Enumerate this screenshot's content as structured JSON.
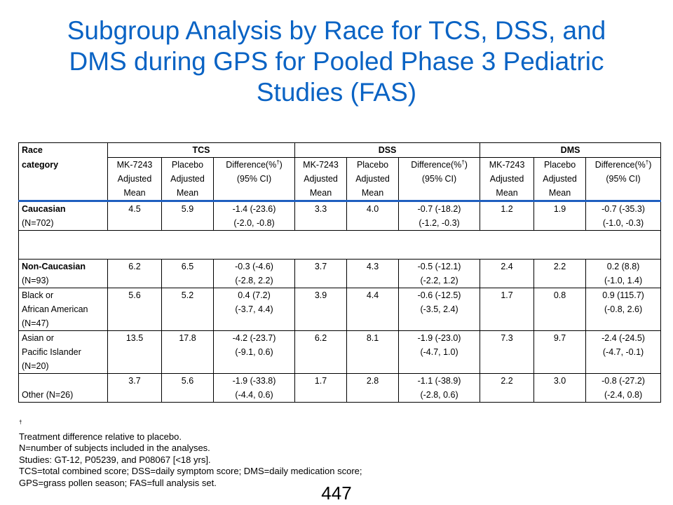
{
  "title": {
    "line1": "Subgroup Analysis by Race for TCS, DSS, and",
    "line2": "DMS during GPS for Pooled Phase 3 Pediatric",
    "line3": "Studies (FAS)"
  },
  "table": {
    "header": {
      "race_line1": "Race",
      "race_line2": "category",
      "groups": [
        "TCS",
        "DSS",
        "DMS"
      ],
      "mk_col": [
        "MK-7243",
        "Adjusted",
        "Mean"
      ],
      "pl_col": [
        "Placebo",
        "Adjusted",
        "Mean"
      ],
      "diff_line1_pre": "Difference(%",
      "diff_sup": "†",
      "diff_line1_post": ")",
      "diff_line2": "(95% CI)"
    },
    "rows": {
      "caucasian": {
        "label": [
          "Caucasian",
          "(N=702)"
        ],
        "tcs": {
          "mk": "4.5",
          "pl": "5.9",
          "d1": "-1.4 (-23.6)",
          "d2": "(-2.0, -0.8)"
        },
        "dss": {
          "mk": "3.3",
          "pl": "4.0",
          "d1": "-0.7 (-18.2)",
          "d2": "(-1.2, -0.3)"
        },
        "dms": {
          "mk": "1.2",
          "pl": "1.9",
          "d1": "-0.7 (-35.3)",
          "d2": "(-1.0, -0.3)"
        }
      },
      "noncaucasian": {
        "label": [
          "Non-Caucasian",
          "(N=93)"
        ],
        "tcs": {
          "mk": "6.2",
          "pl": "6.5",
          "d1": "-0.3 (-4.6)",
          "d2": "(-2.8, 2.2)"
        },
        "dss": {
          "mk": "3.7",
          "pl": "4.3",
          "d1": "-0.5 (-12.1)",
          "d2": "(-2.2, 1.2)"
        },
        "dms": {
          "mk": "2.4",
          "pl": "2.2",
          "d1": "0.2 (8.8)",
          "d2": "(-1.0, 1.4)"
        }
      },
      "black": {
        "label": [
          "Black or",
          "African American",
          "(N=47)"
        ],
        "tcs": {
          "mk": "5.6",
          "pl": "5.2",
          "d1": "0.4 (7.2)",
          "d2": "(-3.7, 4.4)"
        },
        "dss": {
          "mk": "3.9",
          "pl": "4.4",
          "d1": "-0.6 (-12.5)",
          "d2": "(-3.5, 2.4)"
        },
        "dms": {
          "mk": "1.7",
          "pl": "0.8",
          "d1": "0.9 (115.7)",
          "d2": "(-0.8, 2.6)"
        }
      },
      "asian": {
        "label": [
          "Asian or",
          "Pacific Islander",
          "(N=20)"
        ],
        "tcs": {
          "mk": "13.5",
          "pl": "17.8",
          "d1": "-4.2 (-23.7)",
          "d2": "(-9.1, 0.6)"
        },
        "dss": {
          "mk": "6.2",
          "pl": "8.1",
          "d1": "-1.9 (-23.0)",
          "d2": "(-4.7, 1.0)"
        },
        "dms": {
          "mk": "7.3",
          "pl": "9.7",
          "d1": "-2.4 (-24.5)",
          "d2": "(-4.7, -0.1)"
        }
      },
      "other": {
        "label": [
          "Other (N=26)"
        ],
        "tcs": {
          "mk": "3.7",
          "pl": "5.6",
          "d1": "-1.9 (-33.8)",
          "d2": "(-4.4, 0.6)"
        },
        "dss": {
          "mk": "1.7",
          "pl": "2.8",
          "d1": "-1.1 (-38.9)",
          "d2": "(-2.8, 0.6)"
        },
        "dms": {
          "mk": "2.2",
          "pl": "3.0",
          "d1": "-0.8 (-27.2)",
          "d2": "(-2.4, 0.8)"
        }
      }
    }
  },
  "footnotes": {
    "dagger": "†",
    "line1": " Treatment  difference relative to placebo.",
    "line2": "N=number  of subjects included in the analyses.",
    "line3": "Studies: GT-12,  P05239, and P08067 [<18 yrs].",
    "line4": "TCS=total combined score; DSS=daily symptom score; DMS=daily medication score;",
    "line5": "GPS=grass pollen season; FAS=full analysis set."
  },
  "page_number": "447"
}
